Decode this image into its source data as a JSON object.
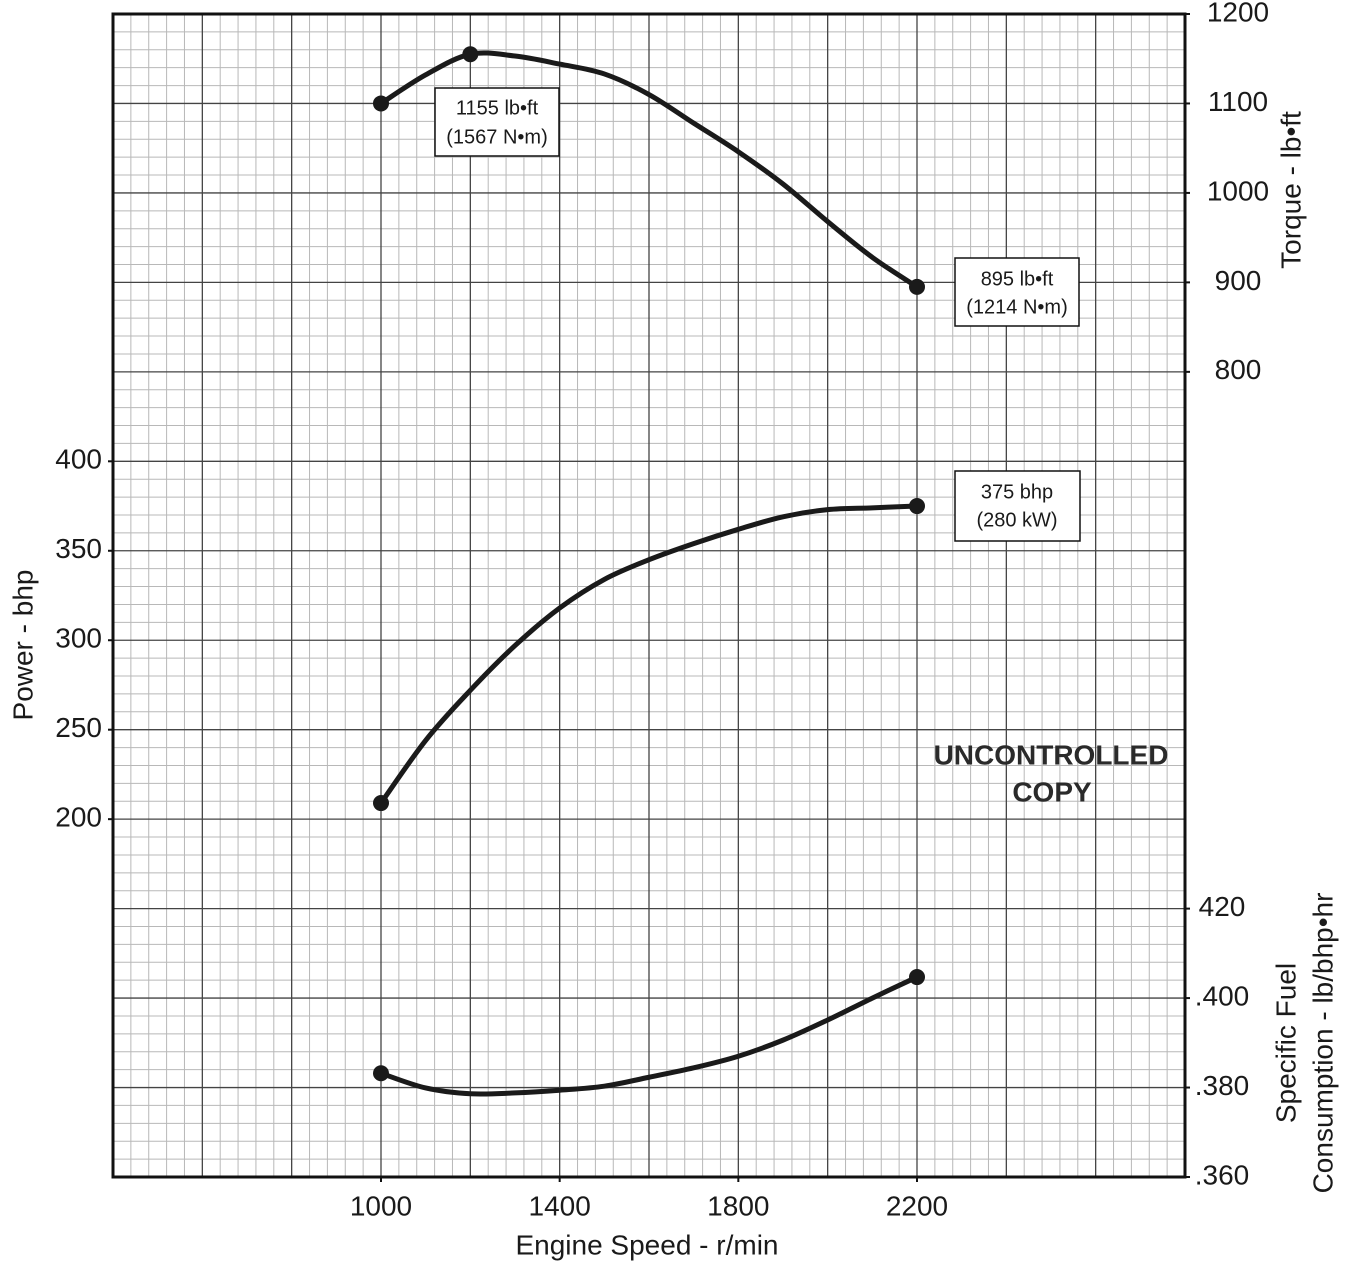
{
  "chart_data": {
    "type": "line",
    "x_label": "Engine Speed - r/min",
    "y_label": "Power - bhp",
    "y2_label": "Torque  - lb•ft",
    "y3_label": [
      "Specific Fuel",
      "Consumption - lb/bhp•hr"
    ],
    "x": [
      1000,
      1100,
      1200,
      1300,
      1400,
      1500,
      1600,
      1700,
      1800,
      1900,
      2000,
      2100,
      2200
    ],
    "xlim": [
      400,
      2800
    ],
    "xticks": [
      1000,
      1400,
      1800,
      2200
    ],
    "ylim": [
      0,
      650
    ],
    "yticks": [
      200,
      250,
      300,
      350,
      400
    ],
    "y2lim": [
      -100,
      1200
    ],
    "y2ticks": [
      800,
      900,
      1000,
      1100,
      1200
    ],
    "y3lim": [
      0.36,
      0.62
    ],
    "y3ticks": [
      {
        "value": 0.36,
        "label": ".360"
      },
      {
        "value": 0.38,
        "label": ".380"
      },
      {
        "value": 0.4,
        "label": ".400"
      },
      {
        "value": 0.42,
        "label": "420"
      }
    ],
    "grid": true,
    "series": [
      {
        "axis": "y2",
        "color": "#1a1a1a",
        "values": [
          1100,
          1132,
          1155,
          1153,
          1144,
          1133,
          1110,
          1078,
          1046,
          1010,
          968,
          928,
          895
        ],
        "marker_x": [
          1000,
          1200,
          2200
        ]
      },
      {
        "axis": "y",
        "color": "#1a1a1a",
        "values": [
          209,
          244,
          272,
          297,
          318,
          334,
          345,
          354,
          362,
          369,
          373,
          374,
          375
        ],
        "marker_x": [
          1000,
          2200
        ]
      },
      {
        "axis": "y3",
        "color": "#1a1a1a",
        "values": [
          0.3832,
          0.3799,
          0.3786,
          0.3788,
          0.3794,
          0.3803,
          0.3823,
          0.3844,
          0.387,
          0.3906,
          0.3951,
          0.4,
          0.4047
        ],
        "marker_x": [
          1000,
          2200
        ]
      }
    ],
    "annotations": [
      [
        "1155 lb•ft",
        "(1567 N•m)"
      ],
      [
        "895 lb•ft",
        "(1214 N•m)"
      ],
      [
        "375 bhp",
        "(280 kW)"
      ],
      [
        "UNCONTROLLED",
        "COPY"
      ]
    ]
  }
}
